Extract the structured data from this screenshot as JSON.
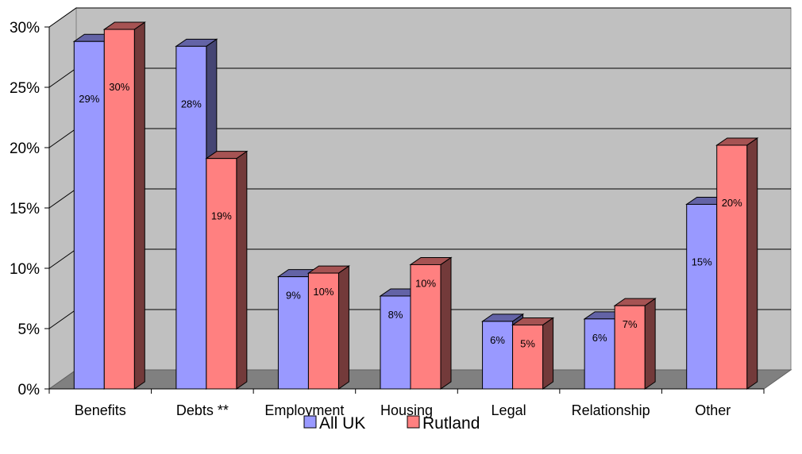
{
  "chart_data": {
    "type": "bar",
    "categories": [
      "Benefits",
      "Debts **",
      "Employment",
      "Housing",
      "Legal",
      "Relationship",
      "Other"
    ],
    "series": [
      {
        "name": "All UK",
        "values": [
          28.8,
          28.4,
          9.3,
          7.7,
          5.6,
          5.8,
          15.3
        ],
        "labels": [
          "29%",
          "28%",
          "9%",
          "8%",
          "6%",
          "6%",
          "15%"
        ],
        "color": "#9999ff"
      },
      {
        "name": "Rutland",
        "values": [
          29.8,
          19.1,
          9.6,
          10.3,
          5.3,
          6.9,
          20.2
        ],
        "labels": [
          "30%",
          "19%",
          "10%",
          "10%",
          "5%",
          "7%",
          "20%"
        ],
        "color": "#ff8080"
      }
    ],
    "y_ticks": [
      "0%",
      "5%",
      "10%",
      "15%",
      "20%",
      "25%",
      "30%"
    ],
    "ylim": [
      0,
      30
    ],
    "grid": true,
    "legend_position": "bottom",
    "style": "3d-clustered-column",
    "wall_color": "#c0c0c0",
    "floor_color": "#808080"
  }
}
